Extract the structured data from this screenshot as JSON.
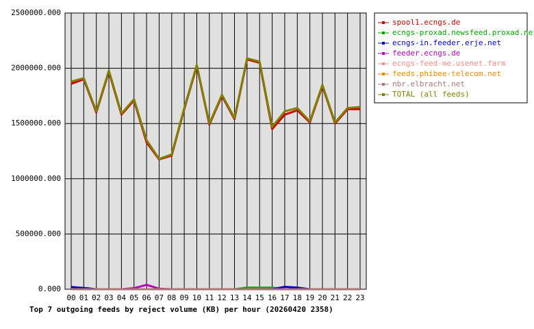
{
  "chart_data": {
    "type": "line",
    "title": "Top 7 outgoing feeds by reject volume (KB) per hour (20260420 2358)",
    "categories": [
      "00",
      "01",
      "02",
      "03",
      "04",
      "05",
      "06",
      "07",
      "08",
      "09",
      "10",
      "11",
      "12",
      "13",
      "14",
      "15",
      "16",
      "17",
      "18",
      "19",
      "20",
      "21",
      "22",
      "23"
    ],
    "ylim": [
      0,
      2500000
    ],
    "yticks": [
      {
        "value": 0,
        "label": "0.000"
      },
      {
        "value": 500000,
        "label": "500000.000"
      },
      {
        "value": 1000000,
        "label": "1000000.000"
      },
      {
        "value": 1500000,
        "label": "1500000.000"
      },
      {
        "value": 2000000,
        "label": "2000000.000"
      },
      {
        "value": 2500000,
        "label": "2500000.000"
      }
    ],
    "grid": true,
    "legend": "right",
    "series": [
      {
        "name": "spool1.ecngs.de",
        "color": "#cc0000",
        "values": [
          1860000,
          1900000,
          1600000,
          1970000,
          1580000,
          1710000,
          1330000,
          1175000,
          1210000,
          1630000,
          2020000,
          1490000,
          1750000,
          1540000,
          2080000,
          2050000,
          1450000,
          1580000,
          1620000,
          1510000,
          1840000,
          1500000,
          1630000,
          1630000
        ]
      },
      {
        "name": "ecngs-proxad.newsfeed.proxad.net",
        "color": "#00aa00",
        "values": [
          0,
          0,
          0,
          0,
          0,
          0,
          0,
          0,
          0,
          0,
          0,
          0,
          0,
          0,
          15000,
          15000,
          15000,
          0,
          0,
          0,
          0,
          0,
          0,
          0
        ]
      },
      {
        "name": "ecngs-in.feeder.erje.net",
        "color": "#0000cc",
        "values": [
          20000,
          12000,
          0,
          0,
          0,
          0,
          0,
          0,
          0,
          0,
          0,
          0,
          0,
          0,
          0,
          0,
          0,
          22000,
          15000,
          0,
          0,
          0,
          0,
          0
        ]
      },
      {
        "name": "feeder.ecngs.de",
        "color": "#bb00bb",
        "values": [
          0,
          0,
          0,
          0,
          0,
          10000,
          40000,
          5000,
          0,
          0,
          0,
          0,
          0,
          0,
          0,
          0,
          0,
          0,
          0,
          0,
          0,
          0,
          0,
          0
        ]
      },
      {
        "name": "ecngs-feed-me.usenet.farm",
        "color": "#ff8888",
        "values": [
          0,
          0,
          0,
          0,
          0,
          0,
          0,
          0,
          0,
          0,
          0,
          0,
          0,
          0,
          0,
          0,
          0,
          0,
          0,
          0,
          0,
          0,
          0,
          0
        ]
      },
      {
        "name": "feeds.phibee-telecom.net",
        "color": "#ee8800",
        "values": [
          0,
          0,
          0,
          0,
          0,
          0,
          0,
          0,
          0,
          0,
          0,
          0,
          0,
          0,
          0,
          0,
          0,
          0,
          0,
          0,
          0,
          0,
          0,
          0
        ]
      },
      {
        "name": "nbr.elbracht.net",
        "color": "#aa7777",
        "values": [
          0,
          0,
          0,
          0,
          0,
          0,
          0,
          0,
          0,
          0,
          0,
          0,
          0,
          0,
          0,
          0,
          0,
          0,
          0,
          0,
          0,
          0,
          0,
          0
        ]
      },
      {
        "name": "TOTAL (all feeds)",
        "color": "#808000",
        "values": [
          1880000,
          1910000,
          1610000,
          1980000,
          1590000,
          1720000,
          1350000,
          1180000,
          1220000,
          1640000,
          2030000,
          1500000,
          1760000,
          1550000,
          2090000,
          2060000,
          1470000,
          1610000,
          1640000,
          1520000,
          1850000,
          1510000,
          1640000,
          1650000
        ]
      }
    ]
  }
}
